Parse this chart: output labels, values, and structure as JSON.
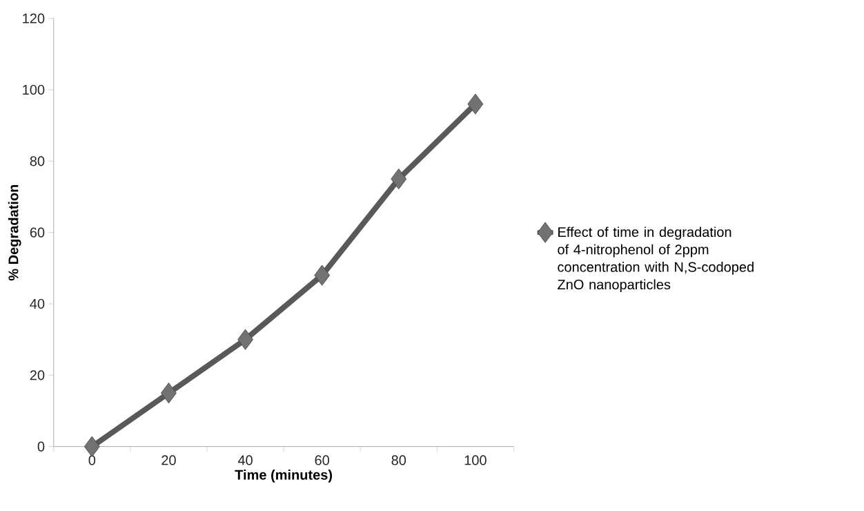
{
  "chart_data": {
    "type": "line",
    "xlabel": "Time (minutes)",
    "ylabel": "% Degradation",
    "categories": [
      "0",
      "20",
      "40",
      "60",
      "80",
      "100"
    ],
    "series": [
      {
        "name": "Effect of time in degradation of 4-nitrophenol of 2ppm concentration with N,S-codoped ZnO nanoparticles",
        "color": "#595959",
        "values": [
          0,
          15,
          30,
          48,
          75,
          96
        ]
      }
    ],
    "ylim": [
      0,
      120
    ],
    "yticks": [
      0,
      20,
      40,
      60,
      80,
      100,
      120
    ],
    "grid": false,
    "legend": "right",
    "marker": "diamond",
    "line_style": "solid"
  }
}
